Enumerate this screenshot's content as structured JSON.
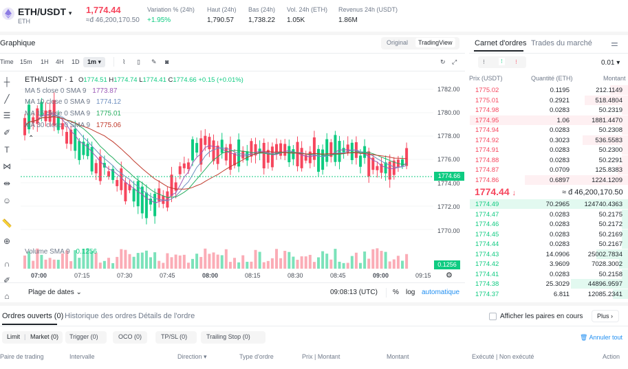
{
  "header": {
    "pair": "ETH/USDT",
    "pair_sub": "ETH",
    "price": "1,774.44",
    "price_sub": "≈đ 46,200,170.50",
    "stats": [
      {
        "label": "Variation % (24h)",
        "value": "+1.95%"
      },
      {
        "label": "Haut (24h)",
        "value": "1,790.57"
      },
      {
        "label": "Bas (24h)",
        "value": "1,738.22"
      },
      {
        "label": "Vol. 24h (ETH)",
        "value": "1.05K"
      },
      {
        "label": "Revenus 24h (USDT)",
        "value": "1.86M"
      }
    ]
  },
  "chart_panel": {
    "title": "Graphique",
    "view_original": "Original",
    "view_tradingview": "TradingView",
    "timeframes": [
      "Time",
      "15m",
      "1H",
      "4H",
      "1D",
      "1m ▾"
    ],
    "symbol": "ETH/USDT · 1",
    "ohlc": {
      "o": "1774.51",
      "h": "1774.74",
      "l": "1774.41",
      "c": "1774.66",
      "chg": "+0.15 (+0.01%)"
    },
    "ma": [
      {
        "label": "MA 5 close 0 SMA 9",
        "value": "1773.87",
        "color": "#9b59b6"
      },
      {
        "label": "MA 10 close 0 SMA 9",
        "value": "1774.12",
        "color": "#6c8ebf"
      },
      {
        "label": "MA 15 close 0 SMA 9",
        "value": "1775.01",
        "color": "#27ae60"
      },
      {
        "label": "MA 30 close 0 SMA 9",
        "value": "1775.06",
        "color": "#c0392b"
      }
    ],
    "volume_label": "Volume SMA 9",
    "volume_value": "0.1256",
    "price_axis": [
      "1782.00",
      "1780.00",
      "1778.00",
      "1776.00",
      "1774.00",
      "1772.00",
      "1770.00"
    ],
    "current_price_tag": "1774.66",
    "volume_tag": "0.1256",
    "time_axis": [
      "07:00",
      "07:15",
      "07:30",
      "07:45",
      "08:00",
      "08:15",
      "08:30",
      "08:45",
      "09:00",
      "09:15"
    ],
    "date_range": "Plage de dates",
    "clock": "09:08:13 (UTC)",
    "percent": "%",
    "log": "log",
    "auto": "automatique"
  },
  "order_book": {
    "tab_active": "Carnet d'ordres",
    "tab_other": "Trades du marché",
    "precision": "0.01",
    "headers": [
      "Prix (USDT)",
      "Quantité (ETH)",
      "Montant"
    ],
    "asks": [
      [
        "1775.02",
        "0.1195",
        "212.1149"
      ],
      [
        "1775.01",
        "0.2921",
        "518.4804"
      ],
      [
        "1774.98",
        "0.0283",
        "50.2319"
      ],
      [
        "1774.95",
        "1.06",
        "1881.4470"
      ],
      [
        "1774.94",
        "0.0283",
        "50.2308"
      ],
      [
        "1774.92",
        "0.3023",
        "536.5583"
      ],
      [
        "1774.91",
        "0.0283",
        "50.2300"
      ],
      [
        "1774.88",
        "0.0283",
        "50.2291"
      ],
      [
        "1774.87",
        "0.0709",
        "125.8383"
      ],
      [
        "1774.86",
        "0.6897",
        "1224.1209"
      ]
    ],
    "mid_price": "1774.44",
    "mid_equiv": "≈ đ 46,200,170.50",
    "bids": [
      [
        "1774.49",
        "70.2965",
        "124740.4363"
      ],
      [
        "1774.47",
        "0.0283",
        "50.2175"
      ],
      [
        "1774.46",
        "0.0283",
        "50.2172"
      ],
      [
        "1774.45",
        "0.0283",
        "50.2169"
      ],
      [
        "1774.44",
        "0.0283",
        "50.2167"
      ],
      [
        "1774.43",
        "14.0906",
        "25002.7834"
      ],
      [
        "1774.42",
        "3.9609",
        "7028.3002"
      ],
      [
        "1774.41",
        "0.0283",
        "50.2158"
      ],
      [
        "1774.38",
        "25.3029",
        "44896.9597"
      ],
      [
        "1774.37",
        "6.811",
        "12085.2341"
      ]
    ]
  },
  "orders": {
    "tabs": [
      "Ordres ouverts (0)",
      "Historique des ordres",
      "Détails de l'ordre"
    ],
    "show_pairs": "Afficher les paires en cours",
    "more": "Plus",
    "filters": [
      "Limit",
      "Market (0)",
      "Trigger (0)",
      "OCO (0)",
      "TP/SL (0)",
      "Trailing Stop (0)"
    ],
    "cancel_all": "Annuler tout",
    "columns": [
      "Paire de trading",
      "Intervalle",
      "Direction ▾",
      "Type d'ordre",
      "Prix | Montant",
      "Montant",
      "Exécuté | Non exécuté",
      "Action"
    ]
  },
  "colors": {
    "up": "#0ecb81",
    "down": "#f6465d",
    "accent": "#1e2329"
  }
}
